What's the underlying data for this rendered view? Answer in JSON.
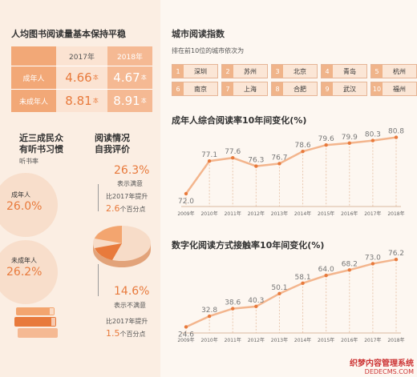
{
  "left": {
    "table_title": "人均图书阅读量基本保持平稳",
    "table": {
      "col_2017": "2017年",
      "col_2018": "2018年",
      "rows": [
        {
          "label": "成年人",
          "v2017": "4.66",
          "v2018": "4.67",
          "unit": "本"
        },
        {
          "label": "未成年人",
          "v2017": "8.81",
          "v2018": "8.91",
          "unit": "本"
        }
      ]
    },
    "listen": {
      "title_l1": "近三成民众",
      "title_l2": "有听书习惯",
      "subtitle": "听书率",
      "adult_label": "成年人",
      "adult_value": "26.0%",
      "minor_label": "未成年人",
      "minor_value": "26.2%"
    },
    "eval": {
      "title_l1": "阅读情况",
      "title_l2": "自我评价",
      "sat_value": "26.3%",
      "sat_label": "表示满意",
      "sat_change_l1": "比2017年提升",
      "sat_change_num": "2.6",
      "sat_change_l2": "个百分点",
      "unsat_value": "14.6%",
      "unsat_label": "表示不满意",
      "unsat_change_l1": "比2017年提升",
      "unsat_change_num": "1.5",
      "unsat_change_l2": "个百分点"
    }
  },
  "cities": {
    "title": "城市阅读指数",
    "subtitle": "排在前10位的城市依次为",
    "items": [
      {
        "rank": "1",
        "name": "深圳"
      },
      {
        "rank": "2",
        "name": "苏州"
      },
      {
        "rank": "3",
        "name": "北京"
      },
      {
        "rank": "4",
        "name": "青岛"
      },
      {
        "rank": "5",
        "name": "杭州"
      },
      {
        "rank": "6",
        "name": "南京"
      },
      {
        "rank": "7",
        "name": "上海"
      },
      {
        "rank": "8",
        "name": "合肥"
      },
      {
        "rank": "9",
        "name": "武汉"
      },
      {
        "rank": "10",
        "name": "福州"
      }
    ]
  },
  "chart_data": [
    {
      "type": "line",
      "title": "成年人综合阅读率10年间变化(%)",
      "x": [
        "2009年",
        "2010年",
        "2011年",
        "2012年",
        "2013年",
        "2014年",
        "2015年",
        "2016年",
        "2017年",
        "2018年"
      ],
      "values": [
        72.0,
        77.1,
        77.6,
        76.3,
        76.7,
        78.6,
        79.6,
        79.9,
        80.3,
        80.8
      ],
      "labels": [
        "72.0",
        "77.1",
        "77.6",
        "76.3",
        "76.7",
        "78.6",
        "79.6",
        "79.9",
        "80.3",
        "80.8"
      ],
      "ylim": [
        70,
        82
      ]
    },
    {
      "type": "line",
      "title": "数字化阅读方式接触率10年间变化(%)",
      "x": [
        "2009年",
        "2010年",
        "2011年",
        "2012年",
        "2013年",
        "2014年",
        "2015年",
        "2016年",
        "2017年",
        "2018年"
      ],
      "values": [
        24.6,
        32.8,
        38.6,
        40.3,
        50.1,
        58.1,
        64.0,
        68.2,
        73.0,
        76.2
      ],
      "labels": [
        "24.6",
        "32.8",
        "38.6",
        "40.3",
        "50.1",
        "58.1",
        "64.0",
        "68.2",
        "73.0",
        "76.2"
      ],
      "ylim": [
        20,
        80
      ]
    }
  ],
  "colors": {
    "accent": "#e87a3c",
    "light": "#f3b58d",
    "pale": "#fbe6d6"
  },
  "watermark": {
    "line1": "织梦内容管理系统",
    "line2": "DEDECMS.COM"
  }
}
